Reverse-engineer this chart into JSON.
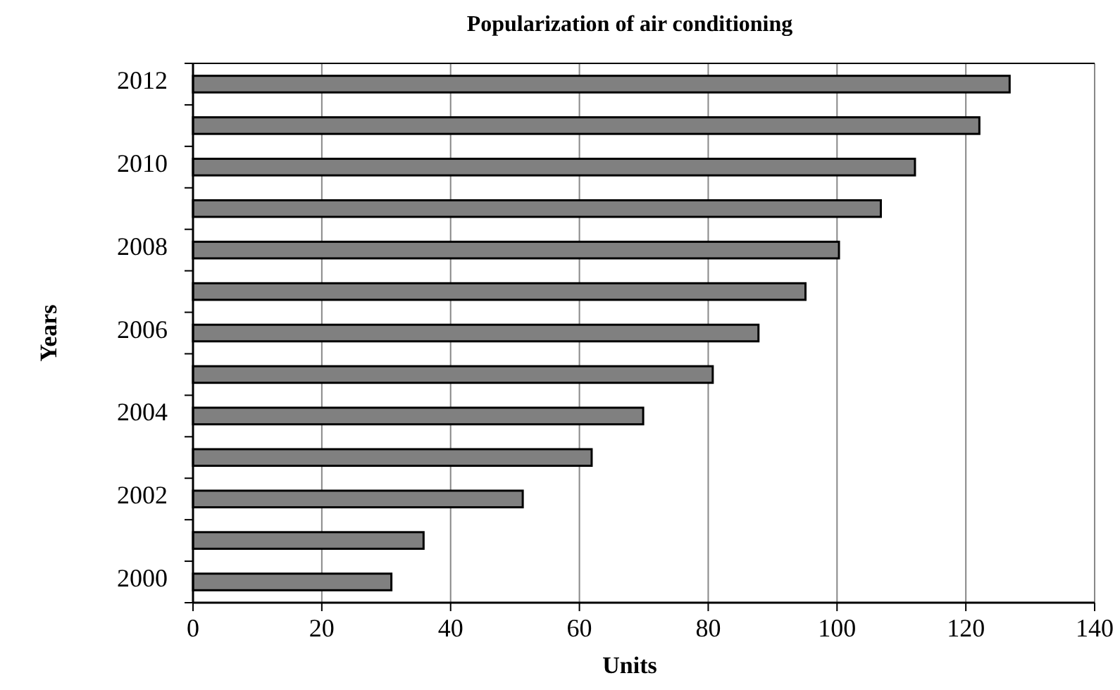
{
  "chart_data": {
    "type": "bar",
    "orientation": "horizontal",
    "title": "Popularization of air conditioning",
    "xlabel": "Units",
    "ylabel": "Years",
    "categories": [
      "2012",
      null,
      "2010",
      null,
      "2008",
      null,
      "2006",
      null,
      "2004",
      null,
      "2002",
      null,
      "2000"
    ],
    "values": [
      126.8,
      122.1,
      112.1,
      106.8,
      100.3,
      95.1,
      87.8,
      80.7,
      69.9,
      61.9,
      51.2,
      35.8,
      30.8
    ],
    "color": "#808080",
    "xlim": [
      0,
      140
    ],
    "xticks": [
      0,
      20,
      40,
      60,
      80,
      100,
      120,
      140
    ],
    "grid": "x"
  }
}
